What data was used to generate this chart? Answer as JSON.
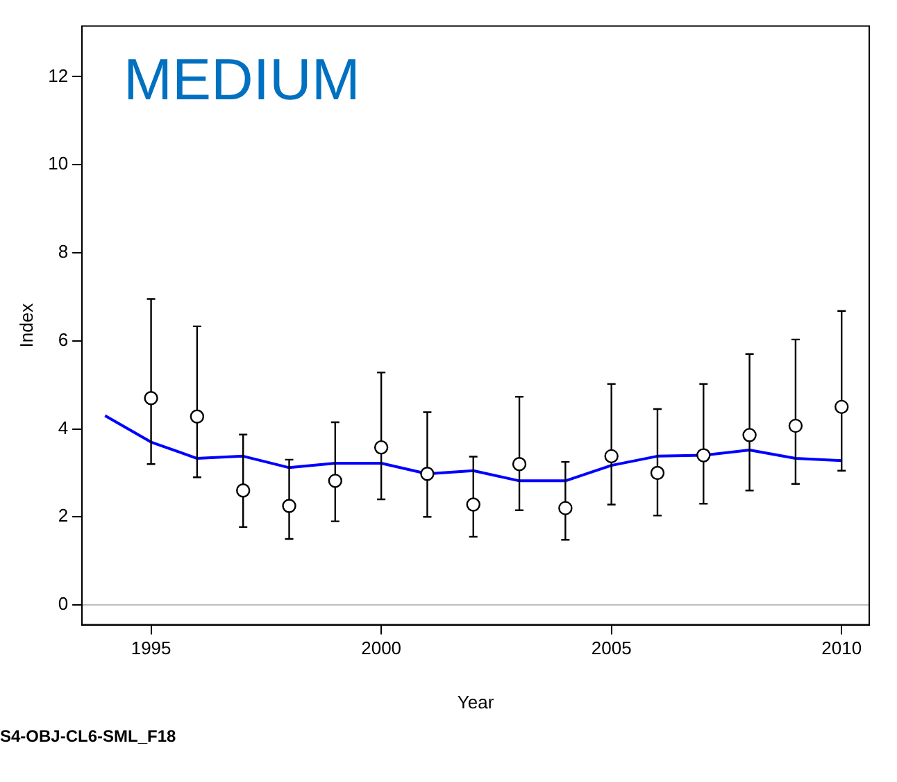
{
  "chart_data": {
    "type": "scatter",
    "title": "MEDIUM",
    "xlabel": "Year",
    "ylabel": "Index",
    "annotations": [
      "S4-OBJ-CL6-SML_F18"
    ],
    "xlim": [
      1993.5,
      2010.6
    ],
    "xticks": [
      1995,
      2000,
      2005,
      2010
    ],
    "ylim": [
      -0.45,
      13.15
    ],
    "yticks": [
      0,
      2,
      4,
      6,
      8,
      10,
      12
    ],
    "grid": false,
    "legend": false,
    "marker": "circle",
    "ref_lines": [
      {
        "axis": "y",
        "value": 0,
        "color": "#bebebe"
      }
    ],
    "series": [
      {
        "type": "scatter",
        "color": "#000000",
        "x": [
          1995,
          1996,
          1997,
          1998,
          1999,
          2000,
          2001,
          2002,
          2003,
          2004,
          2005,
          2006,
          2007,
          2008,
          2009,
          2010
        ],
        "values": [
          4.7,
          4.28,
          2.6,
          2.25,
          2.82,
          3.58,
          2.98,
          2.28,
          3.2,
          2.2,
          3.38,
          3.0,
          3.4,
          3.86,
          4.07,
          4.5
        ],
        "errors": [
          [
            3.2,
            6.95
          ],
          [
            2.9,
            6.33
          ],
          [
            1.77,
            3.87
          ],
          [
            1.5,
            3.3
          ],
          [
            1.9,
            4.15
          ],
          [
            2.4,
            5.28
          ],
          [
            2.0,
            4.38
          ],
          [
            1.55,
            3.37
          ],
          [
            2.15,
            4.73
          ],
          [
            1.48,
            3.25
          ],
          [
            2.28,
            5.02
          ],
          [
            2.03,
            4.45
          ],
          [
            2.3,
            5.02
          ],
          [
            2.6,
            5.7
          ],
          [
            2.75,
            6.03
          ],
          [
            3.05,
            6.68
          ]
        ]
      },
      {
        "type": "line",
        "color": "#0000ff",
        "line_style": "solid",
        "marker": "none",
        "x": [
          1994,
          1995,
          1996,
          1997,
          1998,
          1999,
          2000,
          2001,
          2002,
          2003,
          2004,
          2005,
          2006,
          2007,
          2008,
          2009,
          2010
        ],
        "values": [
          4.3,
          3.7,
          3.33,
          3.38,
          3.12,
          3.22,
          3.22,
          2.98,
          3.05,
          2.82,
          2.82,
          3.17,
          3.38,
          3.4,
          3.52,
          3.33,
          3.28
        ]
      }
    ]
  }
}
